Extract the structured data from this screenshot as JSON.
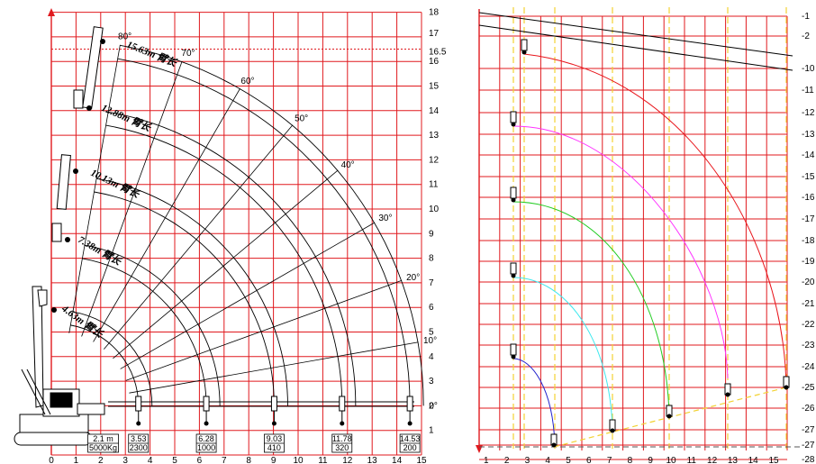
{
  "left_chart": {
    "x_ticks": [
      "0",
      "1",
      "2",
      "3",
      "4",
      "5",
      "6",
      "7",
      "8",
      "9",
      "10",
      "11",
      "12",
      "13",
      "14",
      "15"
    ],
    "y_ticks": [
      "1",
      "2",
      "3",
      "4",
      "5",
      "6",
      "7",
      "8",
      "9",
      "10",
      "11",
      "12",
      "13",
      "14",
      "15",
      "16",
      "16.5",
      "17",
      "18"
    ],
    "angles": [
      "0°",
      "10°",
      "20°",
      "30°",
      "40°",
      "50°",
      "60°",
      "70°",
      "80°"
    ],
    "boom_labels": [
      "15.63m 臂长",
      "12.88m 臂长",
      "10.13m 臂长",
      "7.38m 臂长",
      "4.63m 臂长"
    ],
    "capacities": [
      {
        "radius": "2.1 m",
        "load": "5000Kg"
      },
      {
        "radius": "3.53",
        "load": "2300"
      },
      {
        "radius": "6.28",
        "load": "1000"
      },
      {
        "radius": "9.03",
        "load": "410"
      },
      {
        "radius": "11.78",
        "load": "320"
      },
      {
        "radius": "14.53",
        "load": "200"
      }
    ]
  },
  "right_chart": {
    "x_ticks": [
      "1",
      "2",
      "3",
      "4",
      "5",
      "6",
      "7",
      "8",
      "9",
      "10",
      "11",
      "12",
      "13",
      "14",
      "15"
    ],
    "y_ticks": [
      "-1",
      "-2",
      "-10",
      "-11",
      "-12",
      "-13",
      "-14",
      "-15",
      "-16",
      "-17",
      "-18",
      "-19",
      "-20",
      "-21",
      "-22",
      "-23",
      "-24",
      "-25",
      "-26",
      "-27",
      "-27",
      "-28"
    ]
  },
  "colors": {
    "grid": "#e0191e",
    "dash": "#f2d232",
    "curve_red": "#e8151b",
    "curve_magenta": "#ff33ff",
    "curve_green": "#22cc22",
    "curve_cyan": "#3ee8ee",
    "curve_blue": "#2222cc"
  }
}
